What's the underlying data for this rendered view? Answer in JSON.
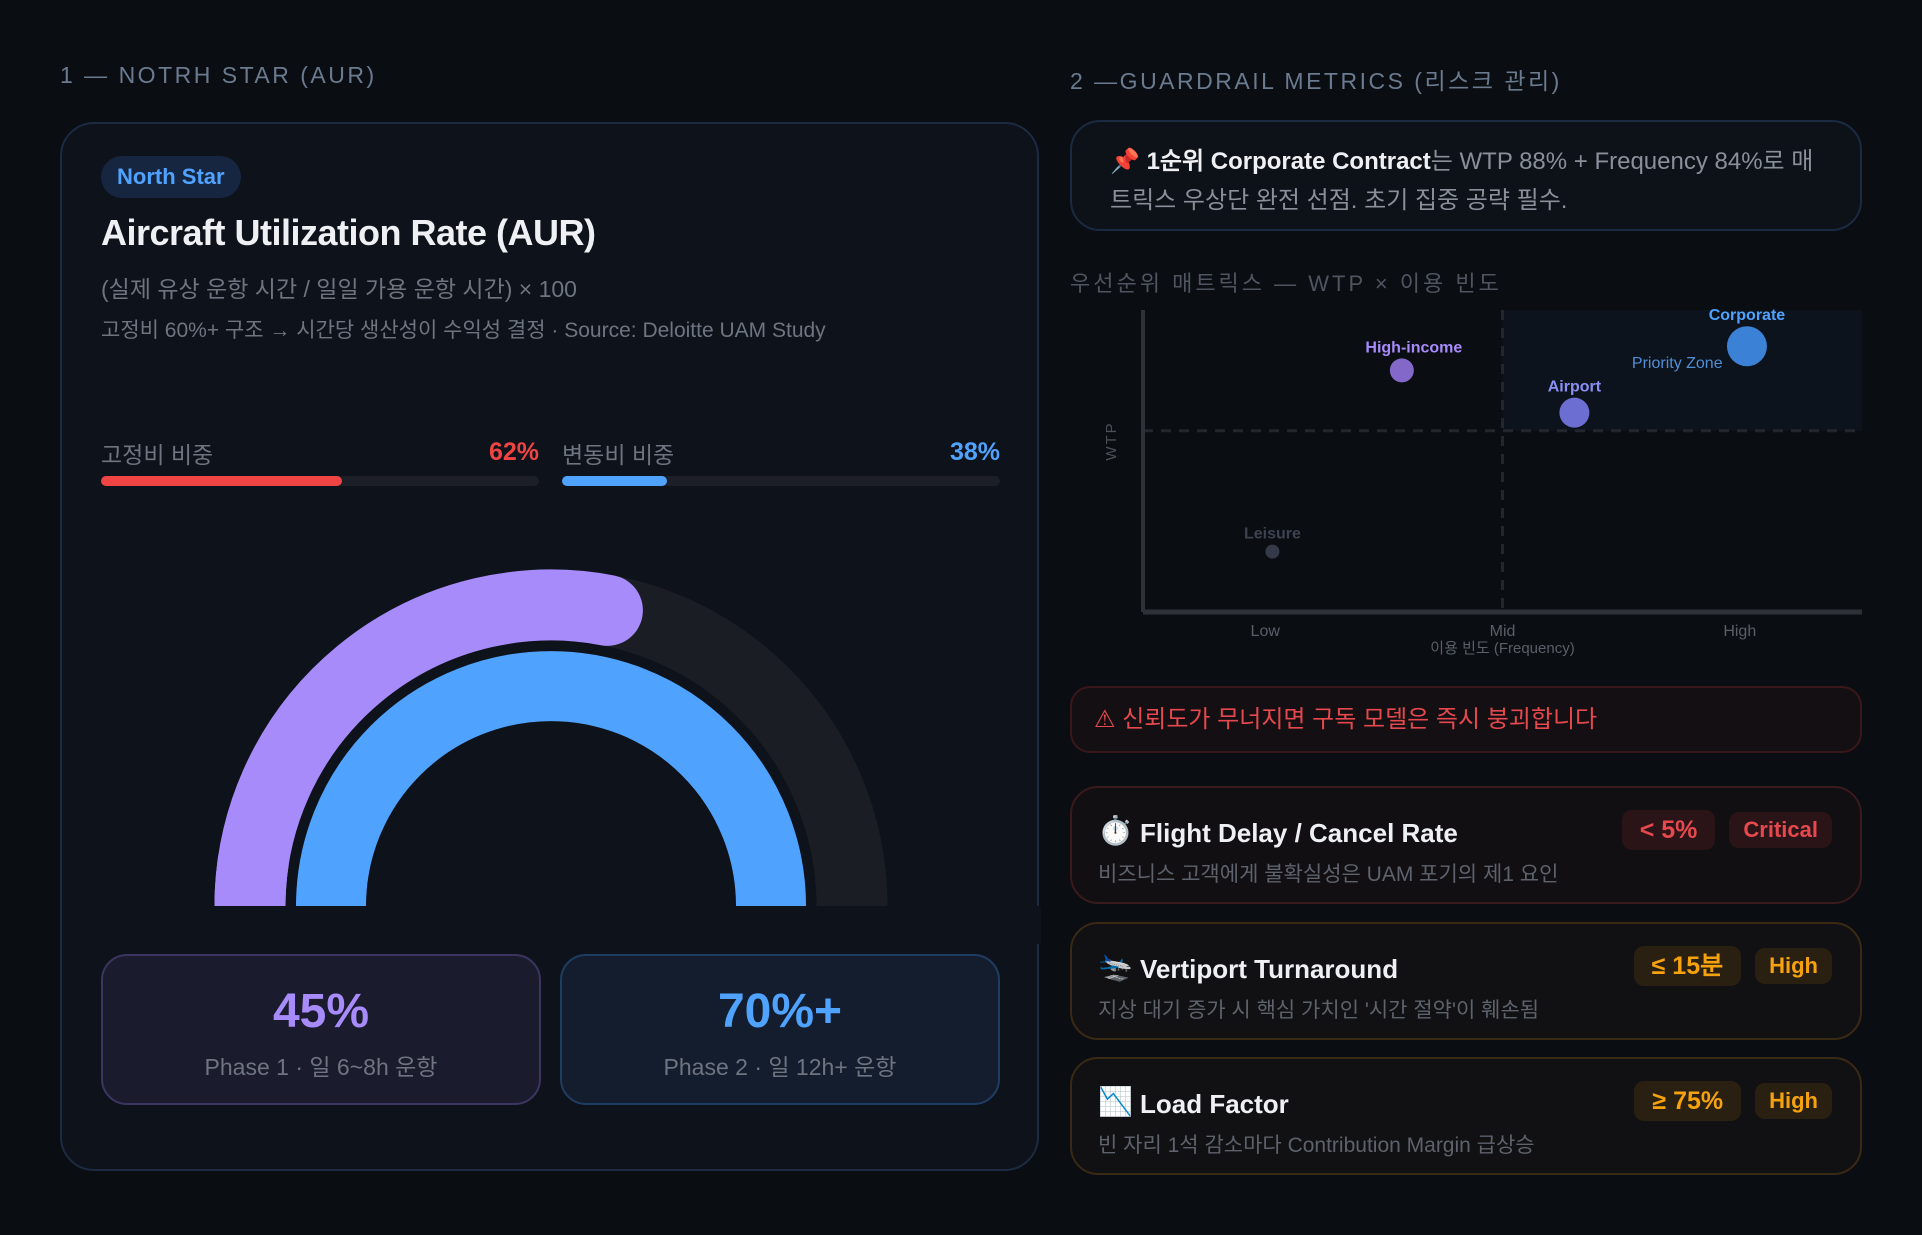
{
  "section1": {
    "title": "1 — NOTRH STAR (AUR)"
  },
  "section2": {
    "title": "2 —GUARDRAIL METRICS (리스크 관리)"
  },
  "north_star": {
    "pill": "North Star",
    "title": "Aircraft Utilization Rate (AUR)",
    "formula": "(실제 유상 운항 시간 / 일일 가용 운항 시간) × 100",
    "note": "고정비 60%+ 구조 → 시간당 생산성이 수익성 결정 · Source: Deloitte UAM Study",
    "bars": [
      {
        "label": "고정비 비중",
        "value": "62%",
        "percent": 55,
        "color": "#ef4444"
      },
      {
        "label": "변동비 비중",
        "value": "38%",
        "percent": 24,
        "color": "#4fa3ff"
      }
    ],
    "gauge": {
      "outer": {
        "label": "Phase 1",
        "percent": 62,
        "color": "#a78bfa",
        "track": "#1b1d25"
      },
      "inner": {
        "label": "Phase 2",
        "percent": 100,
        "color": "#4fa3ff"
      }
    },
    "phases": [
      {
        "value": "45%",
        "label": "Phase 1 · 일 6~8h 운항",
        "color": "#a78bfa"
      },
      {
        "value": "70%+",
        "label": "Phase 2 · 일 12h+ 운항",
        "color": "#4fa3ff"
      }
    ]
  },
  "insight": {
    "icon": "📌",
    "bold": "1순위 Corporate Contract",
    "text": "는 WTP 88% + Frequency 84%로 매트릭스 우상단 완전 선점. 초기 집중 공략 필수."
  },
  "matrix": {
    "title": "우선순위 매트릭스 — WTP × 이용 빈도",
    "priority_zone_label": "Priority Zone"
  },
  "chart_data": {
    "type": "scatter",
    "title": "우선순위 매트릭스 — WTP × 이용 빈도",
    "xlabel": "이용 빈도 (Frequency)",
    "ylabel": "WTP",
    "xlim": [
      0,
      100
    ],
    "ylim": [
      0,
      100
    ],
    "x_ticks": [
      {
        "label": "Low",
        "value": 17
      },
      {
        "label": "Mid",
        "value": 50
      },
      {
        "label": "High",
        "value": 83
      }
    ],
    "grid": false,
    "quadrant_lines": {
      "x": 50,
      "y": 60
    },
    "priority_zone": {
      "x": [
        50,
        100
      ],
      "y": [
        60,
        100
      ],
      "label": "Priority Zone"
    },
    "points": [
      {
        "name": "Corporate",
        "x": 84,
        "y": 88,
        "size": 20,
        "color": "#3b82d6",
        "label_color": "#4fa3ff"
      },
      {
        "name": "Airport",
        "x": 60,
        "y": 66,
        "size": 15,
        "color": "#6c6fd1",
        "label_color": "#8b8ff5"
      },
      {
        "name": "High-income",
        "x": 36,
        "y": 80,
        "size": 12,
        "color": "#8468c9",
        "label_color": "#a78bfa"
      },
      {
        "name": "Leisure",
        "x": 18,
        "y": 20,
        "size": 7,
        "color": "#343a48",
        "label_color": "#3c4250"
      }
    ]
  },
  "alert": {
    "icon": "⚠",
    "text": "신뢰도가 무너지면 구독 모델은 즉시 붕괴합니다"
  },
  "guardrails": [
    {
      "icon": "⏱️",
      "title": "Flight Delay / Cancel Rate",
      "desc": "비즈니스 고객에게 불확실성은 UAM 포기의 제1 요인",
      "target": "< 5%",
      "level": "Critical",
      "tone": "red"
    },
    {
      "icon": "🛬",
      "title": "Vertiport Turnaround",
      "desc": "지상 대기 증가 시 핵심 가치인 '시간 절약'이 훼손됨",
      "target": "≤ 15분",
      "level": "High",
      "tone": "amber"
    },
    {
      "icon": "📉",
      "title": "Load Factor",
      "desc": "빈 자리 1석 감소마다 Contribution Margin 급상승",
      "target": "≥ 75%",
      "level": "High",
      "tone": "amber"
    }
  ]
}
